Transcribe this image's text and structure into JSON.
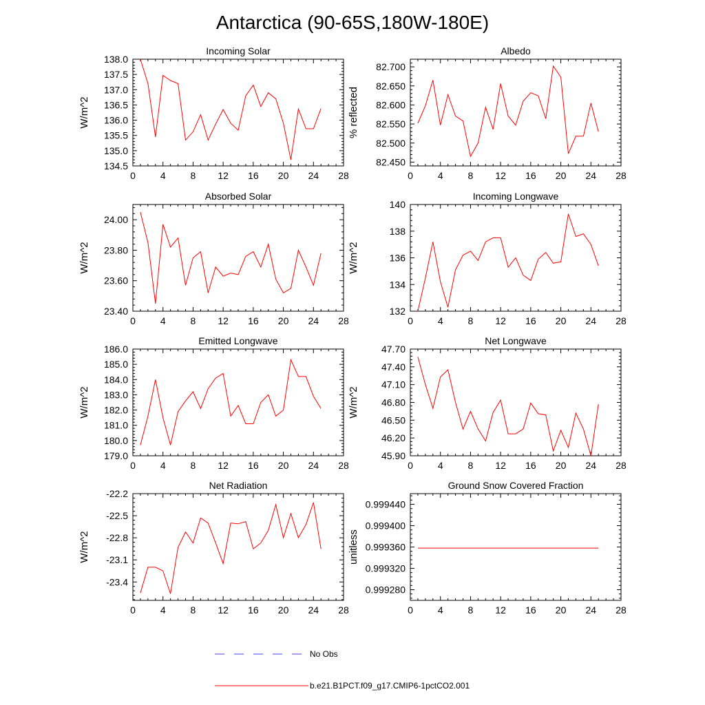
{
  "title": "Antarctica (90-65S,180W-180E)",
  "colors": {
    "model": "#ff0000",
    "obs": "#4040ff",
    "axis": "#000000"
  },
  "legend": {
    "obs_label": "No Obs",
    "model_label": "b.e21.B1PCT.f09_g17.CMIP6-1pctCO2.001"
  },
  "chart_data": [
    {
      "type": "line",
      "title": "Incoming Solar",
      "ylabel": "W/m^2",
      "xlim": [
        0,
        28
      ],
      "xticks": [
        "0",
        "4",
        "8",
        "12",
        "16",
        "20",
        "24",
        "28"
      ],
      "ylim": [
        134.5,
        138.0
      ],
      "yticks": [
        "134.5",
        "135.0",
        "135.5",
        "136.0",
        "136.5",
        "137.0",
        "137.5",
        "138.0"
      ],
      "series": [
        {
          "values": [
            138.0,
            137.2,
            135.45,
            137.47,
            137.3,
            137.2,
            135.35,
            135.62,
            136.18,
            135.35,
            135.87,
            136.35,
            135.9,
            135.67,
            136.8,
            137.15,
            136.45,
            136.9,
            136.7,
            135.9,
            134.7,
            136.37,
            135.72,
            135.72,
            136.38
          ]
        }
      ]
    },
    {
      "type": "line",
      "title": "Albedo",
      "ylabel": "% reflected",
      "xlim": [
        0,
        28
      ],
      "xticks": [
        "0",
        "4",
        "8",
        "12",
        "16",
        "20",
        "24",
        "28"
      ],
      "ylim": [
        82.44,
        82.72
      ],
      "yticks": [
        "82.450",
        "82.500",
        "82.550",
        "82.600",
        "82.650",
        "82.700"
      ],
      "series": [
        {
          "values": [
            82.552,
            82.598,
            82.665,
            82.547,
            82.627,
            82.571,
            82.558,
            82.465,
            82.5,
            82.594,
            82.536,
            82.656,
            82.571,
            82.547,
            82.61,
            82.632,
            82.624,
            82.564,
            82.702,
            82.673,
            82.472,
            82.518,
            82.518,
            82.605,
            82.53
          ]
        }
      ]
    },
    {
      "type": "line",
      "title": "Absorbed Solar",
      "ylabel": "W/m^2",
      "xlim": [
        0,
        28
      ],
      "xticks": [
        "0",
        "4",
        "8",
        "12",
        "16",
        "20",
        "24",
        "28"
      ],
      "ylim": [
        23.4,
        24.1
      ],
      "yticks": [
        "23.40",
        "23.60",
        "23.80",
        "24.00"
      ],
      "series": [
        {
          "values": [
            24.05,
            23.85,
            23.45,
            23.97,
            23.82,
            23.88,
            23.57,
            23.75,
            23.79,
            23.52,
            23.69,
            23.63,
            23.65,
            23.64,
            23.76,
            23.79,
            23.69,
            23.84,
            23.61,
            23.52,
            23.55,
            23.8,
            23.69,
            23.57,
            23.78
          ]
        }
      ]
    },
    {
      "type": "line",
      "title": "Incoming Longwave",
      "ylabel": "W/m^2",
      "xlim": [
        0,
        28
      ],
      "xticks": [
        "0",
        "4",
        "8",
        "12",
        "16",
        "20",
        "24",
        "28"
      ],
      "ylim": [
        132,
        140
      ],
      "yticks": [
        "132",
        "134",
        "136",
        "138",
        "140"
      ],
      "series": [
        {
          "values": [
            132.0,
            134.5,
            137.2,
            134.2,
            132.3,
            135.1,
            136.2,
            136.5,
            135.8,
            137.2,
            137.5,
            137.5,
            135.3,
            136.0,
            134.7,
            134.3,
            135.9,
            136.4,
            135.6,
            135.7,
            139.3,
            137.6,
            137.8,
            137.0,
            135.4
          ]
        }
      ]
    },
    {
      "type": "line",
      "title": "Emitted Longwave",
      "ylabel": "W/m^2",
      "xlim": [
        0,
        28
      ],
      "xticks": [
        "0",
        "4",
        "8",
        "12",
        "16",
        "20",
        "24",
        "28"
      ],
      "ylim": [
        179.0,
        186.0
      ],
      "yticks": [
        "179.0",
        "180.0",
        "181.0",
        "182.0",
        "183.0",
        "184.0",
        "185.0",
        "186.0"
      ],
      "series": [
        {
          "values": [
            179.7,
            181.6,
            184.0,
            181.5,
            179.7,
            181.9,
            182.6,
            183.2,
            182.1,
            183.4,
            184.1,
            184.4,
            181.6,
            182.3,
            181.1,
            181.1,
            182.5,
            183.0,
            181.6,
            182.0,
            185.3,
            184.2,
            184.2,
            182.9,
            182.1
          ]
        }
      ]
    },
    {
      "type": "line",
      "title": "Net Longwave",
      "ylabel": "W/m^2",
      "xlim": [
        0,
        28
      ],
      "xticks": [
        "0",
        "4",
        "8",
        "12",
        "16",
        "20",
        "24",
        "28"
      ],
      "ylim": [
        45.9,
        47.7
      ],
      "yticks": [
        "45.90",
        "46.20",
        "46.50",
        "46.80",
        "47.10",
        "47.40",
        "47.70"
      ],
      "series": [
        {
          "values": [
            47.57,
            47.1,
            46.7,
            47.23,
            47.35,
            46.8,
            46.35,
            46.65,
            46.35,
            46.15,
            46.63,
            46.84,
            46.27,
            46.27,
            46.35,
            46.79,
            46.61,
            46.59,
            45.98,
            46.33,
            46.04,
            46.62,
            46.35,
            45.9,
            46.77
          ]
        }
      ]
    },
    {
      "type": "line",
      "title": "Net Radiation",
      "ylabel": "W/m^2",
      "xlim": [
        0,
        28
      ],
      "xticks": [
        "0",
        "4",
        "8",
        "12",
        "16",
        "20",
        "24",
        "28"
      ],
      "ylim": [
        -23.65,
        -22.2
      ],
      "yticks": [
        "-23.4",
        "-23.1",
        "-22.8",
        "-22.5",
        "-22.2"
      ],
      "series": [
        {
          "values": [
            -23.55,
            -23.2,
            -23.2,
            -23.25,
            -23.56,
            -22.93,
            -22.72,
            -22.87,
            -22.53,
            -22.6,
            -22.87,
            -23.15,
            -22.6,
            -22.61,
            -22.58,
            -22.95,
            -22.87,
            -22.7,
            -22.35,
            -22.8,
            -22.47,
            -22.8,
            -22.62,
            -22.32,
            -22.95
          ]
        }
      ]
    },
    {
      "type": "line",
      "title": "Ground Snow Covered Fraction",
      "ylabel": "unitless",
      "xlim": [
        0,
        28
      ],
      "xticks": [
        "0",
        "4",
        "8",
        "12",
        "16",
        "20",
        "24",
        "28"
      ],
      "ylim": [
        0.99926,
        0.99946
      ],
      "yticks": [
        "0.999280",
        "0.999320",
        "0.999360",
        "0.999400",
        "0.999440"
      ],
      "series": [
        {
          "values": [
            0.999358,
            0.999358,
            0.999358,
            0.999358,
            0.999358,
            0.999358,
            0.999358,
            0.999358,
            0.999358,
            0.999358,
            0.999358,
            0.999358,
            0.999358,
            0.999358,
            0.999358,
            0.999358,
            0.999358,
            0.999358,
            0.999358,
            0.999358,
            0.999358,
            0.999358,
            0.999358,
            0.999358,
            0.999358
          ]
        }
      ]
    }
  ]
}
